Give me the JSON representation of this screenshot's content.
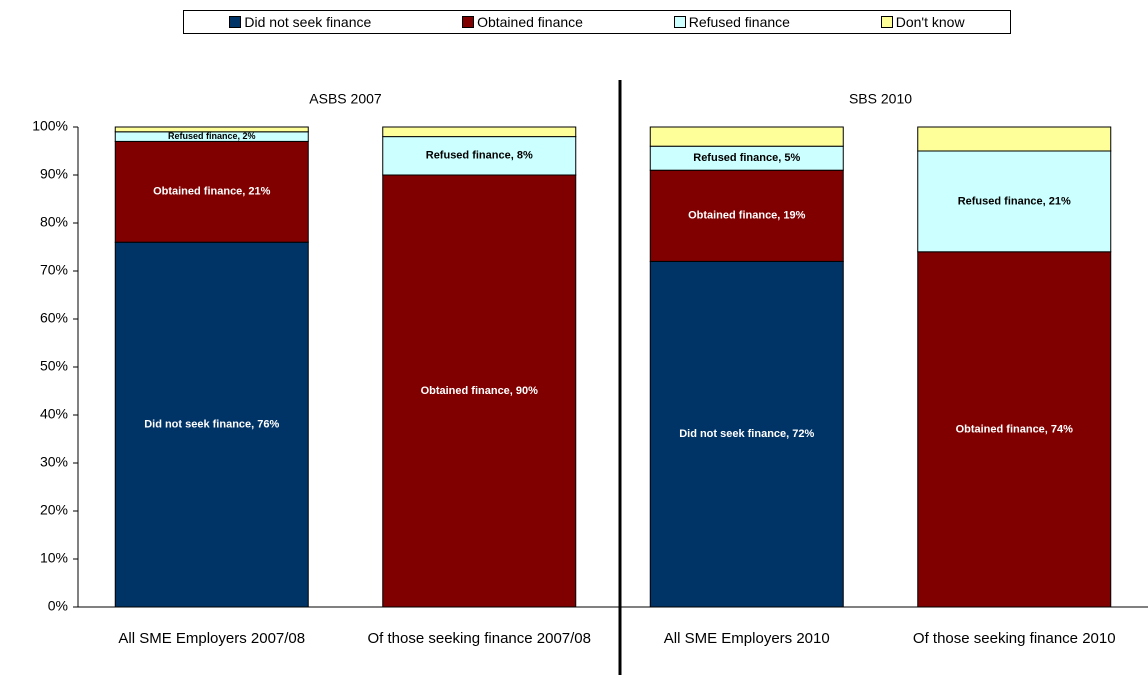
{
  "chart_data": {
    "type": "stacked_bar",
    "group_labels": [
      "ASBS 2007",
      "SBS 2010"
    ],
    "categories": [
      "All SME Employers 2007/08",
      "Of those seeking finance 2007/08",
      "All SME Employers 2010",
      "Of those seeking finance 2010"
    ],
    "series": [
      {
        "name": "Did not seek finance",
        "color": "#003366",
        "values": [
          76,
          0,
          72,
          0
        ],
        "value_labels": [
          "Did not seek finance, 76%",
          null,
          "Did not seek finance, 72%",
          null
        ]
      },
      {
        "name": "Obtained finance",
        "color": "#800000",
        "values": [
          21,
          90,
          19,
          74
        ],
        "value_labels": [
          "Obtained finance, 21%",
          "Obtained finance, 90%",
          "Obtained finance, 19%",
          "Obtained finance, 74%"
        ]
      },
      {
        "name": "Refused finance",
        "color": "#ccffff",
        "values": [
          2,
          8,
          5,
          21
        ],
        "value_labels": [
          "Refused finance, 2%",
          "Refused finance, 8%",
          "Refused finance, 5%",
          "Refused finance, 21%"
        ]
      },
      {
        "name": "Don't know",
        "color": "#ffff99",
        "values": [
          1,
          2,
          4,
          5
        ]
      }
    ],
    "ylim": [
      0,
      100
    ],
    "yticks": [
      {
        "value": 0,
        "label": "0%"
      },
      {
        "value": 10,
        "label": "10%"
      },
      {
        "value": 20,
        "label": "20%"
      },
      {
        "value": 30,
        "label": "30%"
      },
      {
        "value": 40,
        "label": "40%"
      },
      {
        "value": 50,
        "label": "50%"
      },
      {
        "value": 60,
        "label": "60%"
      },
      {
        "value": 70,
        "label": "70%"
      },
      {
        "value": 80,
        "label": "80%"
      },
      {
        "value": 90,
        "label": "90%"
      },
      {
        "value": 100,
        "label": "100%"
      }
    ],
    "grid": false,
    "legend": "top"
  }
}
